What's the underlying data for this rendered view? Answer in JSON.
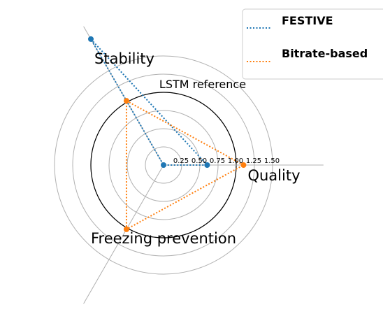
{
  "chart_data": {
    "type": "radar",
    "axes": [
      {
        "name": "Quality",
        "angle_deg": 0
      },
      {
        "name": "Stability",
        "angle_deg": 120
      },
      {
        "name": "Freezing prevention",
        "angle_deg": 240
      }
    ],
    "radial_ticks": [
      0.25,
      0.5,
      0.75,
      1.0,
      1.25,
      1.5
    ],
    "tick_labels": [
      "0.25",
      "0.50",
      "0.75",
      "1.00",
      "1.25",
      "1.50"
    ],
    "reference": {
      "label": "LSTM reference",
      "value": 1.0
    },
    "series": [
      {
        "name": "FESTIVE",
        "color": "#1f77b4",
        "values": [
          0.6,
          2.0,
          0.0
        ]
      },
      {
        "name": "Bitrate-based",
        "color": "#ff7f0e",
        "values": [
          1.1,
          1.02,
          1.02
        ]
      }
    ],
    "grid": true,
    "legend": "top-right"
  }
}
